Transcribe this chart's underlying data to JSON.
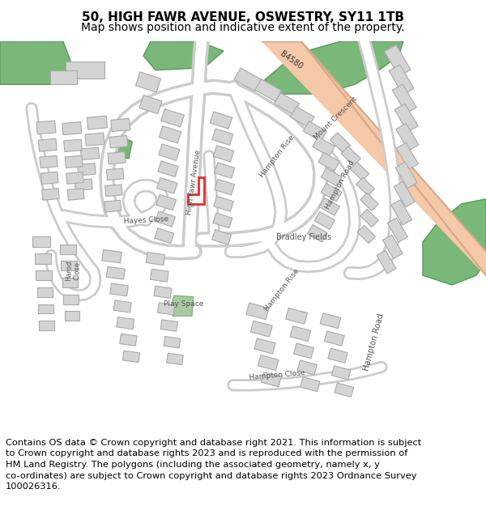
{
  "title_line1": "50, HIGH FAWR AVENUE, OSWESTRY, SY11 1TB",
  "title_line2": "Map shows position and indicative extent of the property.",
  "footer": "Contains OS data © Crown copyright and database right 2021. This information is subject\nto Crown copyright and database rights 2023 and is reproduced with the permission of\nHM Land Registry. The polygons (including the associated geometry, namely x, y\nco-ordinates) are subject to Crown copyright and database rights 2023 Ordnance Survey\n100026316.",
  "bg_color": "#ffffff",
  "green_color": "#7ab87a",
  "play_green": "#a8c8a0",
  "building_fc": "#d4d4d4",
  "building_ec": "#aaaaaa",
  "road_fill": "#f5c8a8",
  "road_edge": "#d4a888",
  "road_grey": "#cccccc",
  "highlight": "#e03030",
  "water_blue": "#a8c8e8",
  "label_color": "#555555",
  "title_fs": 11,
  "subtitle_fs": 10,
  "footer_fs": 8.2,
  "label_fs": 6.5
}
